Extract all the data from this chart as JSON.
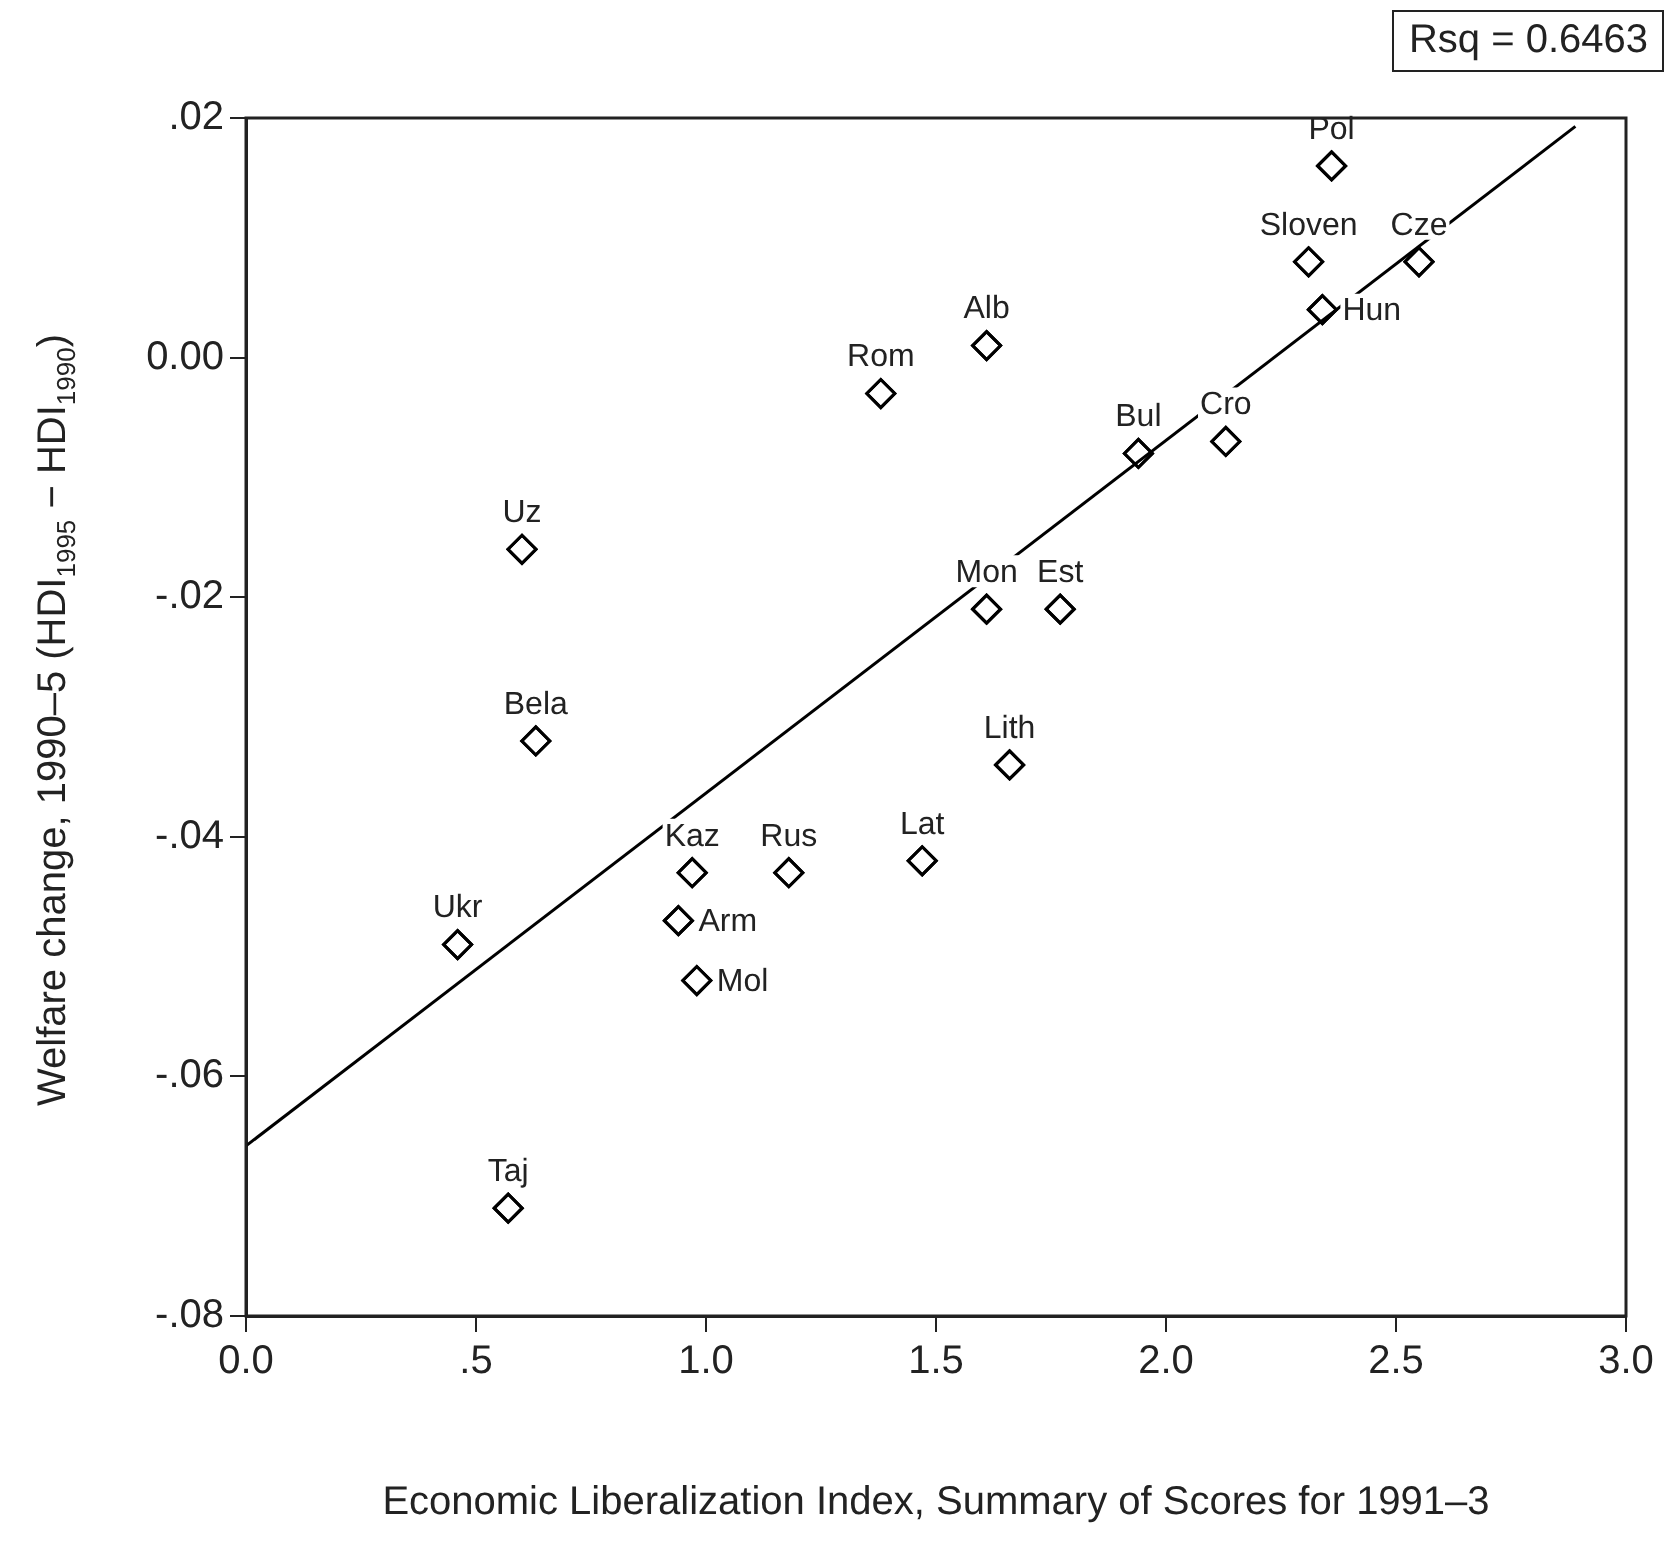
{
  "chart_data": {
    "type": "scatter",
    "xlabel": "Economic Liberalization Index, Summary of Scores for 1991–3",
    "ylabel": "Welfare change, 1990–5 (HDI$_{1995}$ − HDI$_{1990}$)",
    "annotations": [
      "Rsq = 0.6463"
    ],
    "xlim": [
      0,
      3
    ],
    "ylim": [
      -0.08,
      0.02
    ],
    "xticks": [
      {
        "value": 0,
        "label": "0.0"
      },
      {
        "value": 0.5,
        "label": ".5"
      },
      {
        "value": 1,
        "label": "1.0"
      },
      {
        "value": 1.5,
        "label": "1.5"
      },
      {
        "value": 2,
        "label": "2.0"
      },
      {
        "value": 2.5,
        "label": "2.5"
      },
      {
        "value": 3,
        "label": "3.0"
      }
    ],
    "yticks": [
      {
        "value": 0.02,
        "label": ".02"
      },
      {
        "value": 0,
        "label": "0.00"
      },
      {
        "value": -0.02,
        "label": "-.02"
      },
      {
        "value": -0.04,
        "label": "-.04"
      },
      {
        "value": -0.06,
        "label": "-.06"
      },
      {
        "value": -0.08,
        "label": "-.08"
      }
    ],
    "grid": false,
    "legend": false,
    "marker": "diamond",
    "series": [
      {
        "type": "scatter",
        "color": "#000000",
        "x": [
          2.36,
          2.31,
          2.55,
          2.34,
          1.61,
          1.38,
          1.94,
          2.13,
          0.6,
          1.61,
          1.77,
          0.63,
          1.66,
          0.97,
          1.18,
          1.47,
          0.46,
          0.94,
          0.98,
          0.57
        ],
        "values": [
          0.016,
          0.008,
          0.008,
          0.004,
          0.001,
          -0.003,
          -0.008,
          -0.007,
          -0.016,
          -0.021,
          -0.021,
          -0.032,
          -0.034,
          -0.043,
          -0.043,
          -0.042,
          -0.049,
          -0.047,
          -0.052,
          -0.071
        ],
        "value_labels": [
          "Pol",
          "Sloven",
          "Cze",
          "Hun",
          "Alb",
          "Rom",
          "Bul",
          "Cro",
          "Uz",
          "Mon",
          "Est",
          "Bela",
          "Lith",
          "Kaz",
          "Rus",
          "Lat",
          "Ukr",
          "Arm",
          "Mol",
          "Taj"
        ]
      },
      {
        "type": "line",
        "color": "#000000",
        "marker": "none",
        "x": [
          0,
          2.89
        ],
        "values": [
          -0.0658,
          0.0193
        ]
      }
    ]
  }
}
